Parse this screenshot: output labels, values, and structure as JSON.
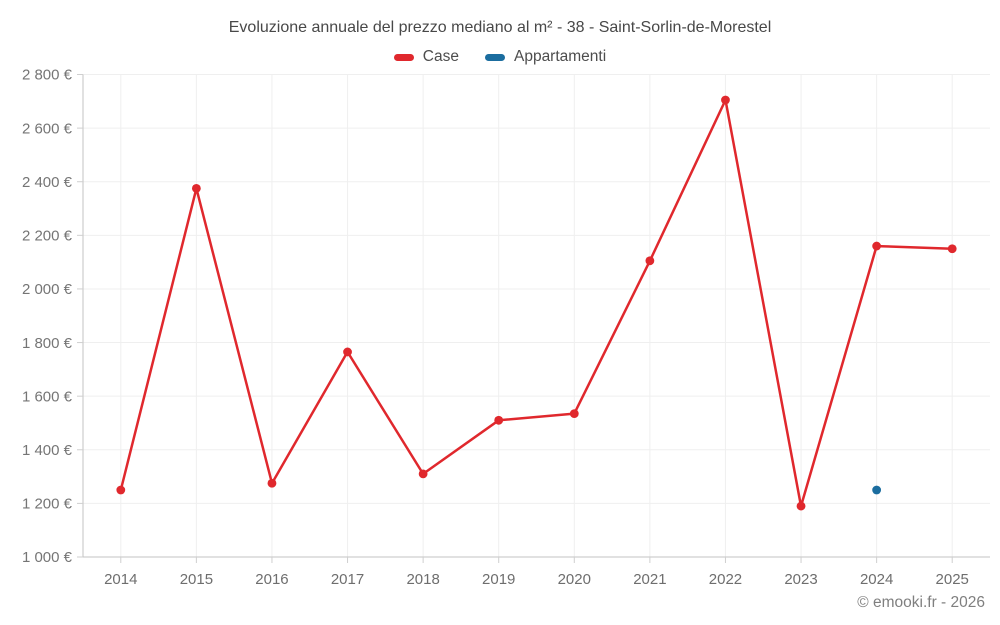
{
  "footer": {
    "copyright": "© emooki.fr - 2026"
  },
  "chart_data": {
    "type": "line",
    "title": "Evoluzione annuale del prezzo mediano al m² - 38 - Saint-Sorlin-de-Morestel",
    "categories": [
      "2014",
      "2015",
      "2016",
      "2017",
      "2018",
      "2019",
      "2020",
      "2021",
      "2022",
      "2023",
      "2024",
      "2025"
    ],
    "ylim": [
      1000,
      2800
    ],
    "grid": true,
    "legend_position": "top",
    "currency_suffix": " €",
    "y_ticks": [
      {
        "value": 1000,
        "label": "1 000 €"
      },
      {
        "value": 1200,
        "label": "1 200 €"
      },
      {
        "value": 1400,
        "label": "1 400 €"
      },
      {
        "value": 1600,
        "label": "1 600 €"
      },
      {
        "value": 1800,
        "label": "1 800 €"
      },
      {
        "value": 2000,
        "label": "2 000 €"
      },
      {
        "value": 2200,
        "label": "2 200 €"
      },
      {
        "value": 2400,
        "label": "2 400 €"
      },
      {
        "value": 2600,
        "label": "2 600 €"
      },
      {
        "value": 2800,
        "label": "2 800 €"
      }
    ],
    "series": [
      {
        "name": "Case",
        "color": "#e0282d",
        "values": [
          1250,
          2375,
          1275,
          1765,
          1310,
          1510,
          1535,
          2105,
          2705,
          1190,
          2160,
          2150
        ]
      },
      {
        "name": "Appartamenti",
        "color": "#1b6d9f",
        "values": [
          null,
          null,
          null,
          null,
          null,
          null,
          null,
          null,
          null,
          null,
          1250,
          null
        ]
      }
    ]
  }
}
